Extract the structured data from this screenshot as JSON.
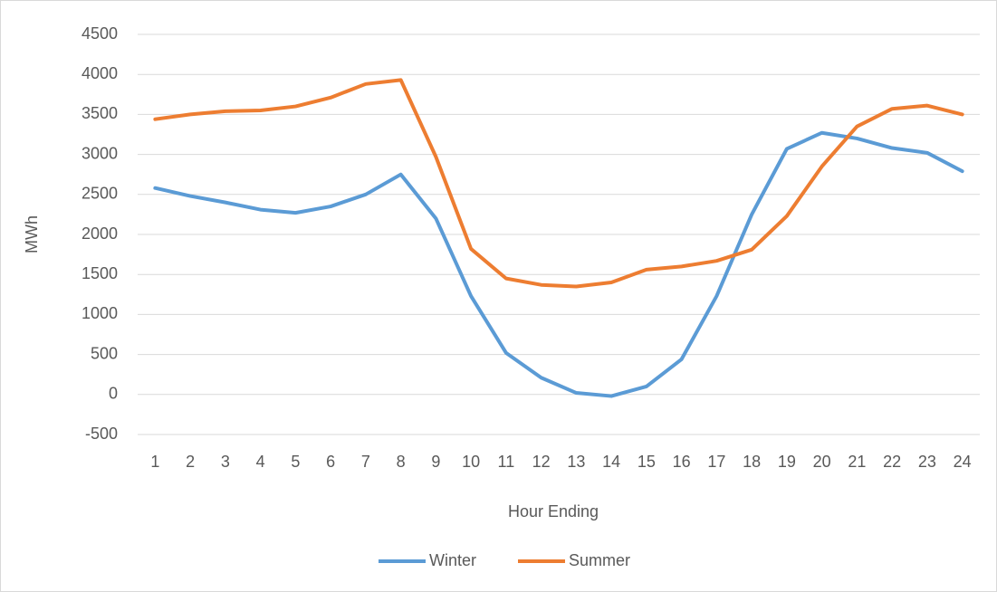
{
  "chart_data": {
    "type": "line",
    "x_label": "Hour Ending",
    "y_label": "MWh",
    "categories": [
      1,
      2,
      3,
      4,
      5,
      6,
      7,
      8,
      9,
      10,
      11,
      12,
      13,
      14,
      15,
      16,
      17,
      18,
      19,
      20,
      21,
      22,
      23,
      24
    ],
    "series": [
      {
        "name": "Winter",
        "color": "#5b9bd5",
        "values": [
          2580,
          2480,
          2400,
          2310,
          2270,
          2350,
          2500,
          2750,
          2200,
          1230,
          520,
          210,
          20,
          -20,
          100,
          440,
          1230,
          2250,
          3070,
          3270,
          3200,
          3080,
          3020,
          2790
        ]
      },
      {
        "name": "Summer",
        "color": "#ed7d31",
        "values": [
          3440,
          3500,
          3540,
          3550,
          3600,
          3710,
          3880,
          3930,
          2970,
          1820,
          1450,
          1370,
          1350,
          1400,
          1560,
          1600,
          1670,
          1810,
          2230,
          2850,
          3350,
          3570,
          3610,
          3500
        ]
      }
    ],
    "ylim": [
      -500,
      4500
    ],
    "yticks": [
      -500,
      0,
      500,
      1000,
      1500,
      2000,
      2500,
      3000,
      3500,
      4000,
      4500
    ],
    "grid": true,
    "legend": "bottom"
  }
}
